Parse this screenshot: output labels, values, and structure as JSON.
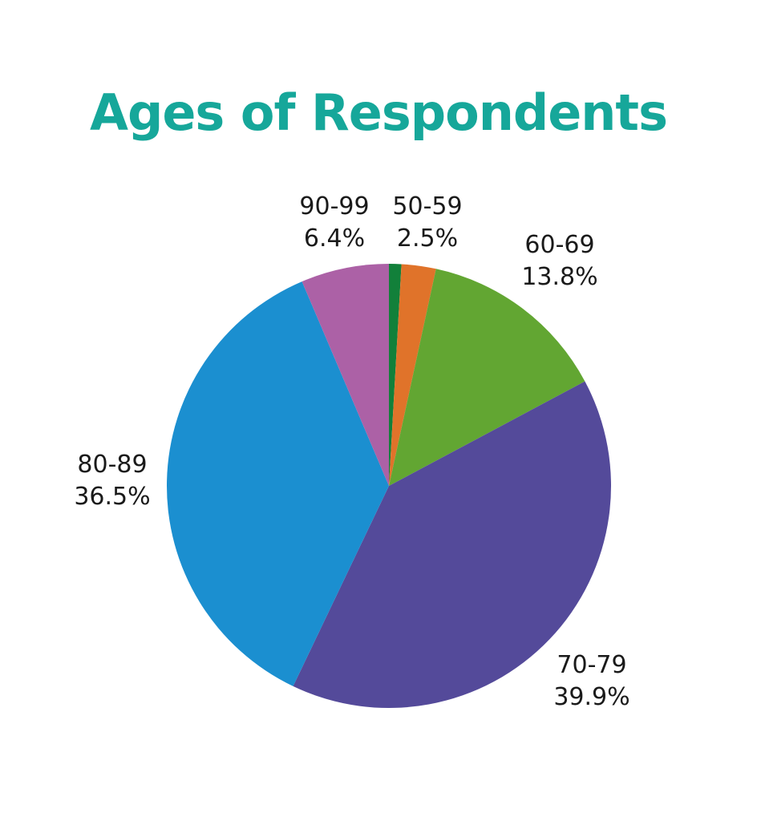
{
  "chart_data": {
    "type": "pie",
    "title": "Ages of Respondents",
    "slices": [
      {
        "category": "",
        "value": 0.9,
        "color": "#12803a",
        "label_visible": false
      },
      {
        "category": "50-59",
        "value": 2.5,
        "value_label": "2.5%",
        "color": "#e0732a",
        "label_visible": true
      },
      {
        "category": "60-69",
        "value": 13.8,
        "value_label": "13.8%",
        "color": "#62a632",
        "label_visible": true
      },
      {
        "category": "70-79",
        "value": 39.9,
        "value_label": "39.9%",
        "color": "#544a9a",
        "label_visible": true
      },
      {
        "category": "80-89",
        "value": 36.5,
        "value_label": "36.5%",
        "color": "#1b8fd0",
        "label_visible": true
      },
      {
        "category": "90-99",
        "value": 6.4,
        "value_label": "6.4%",
        "color": "#ac61a6",
        "label_visible": true
      }
    ],
    "start_angle_deg": 0,
    "direction": "clockwise"
  }
}
